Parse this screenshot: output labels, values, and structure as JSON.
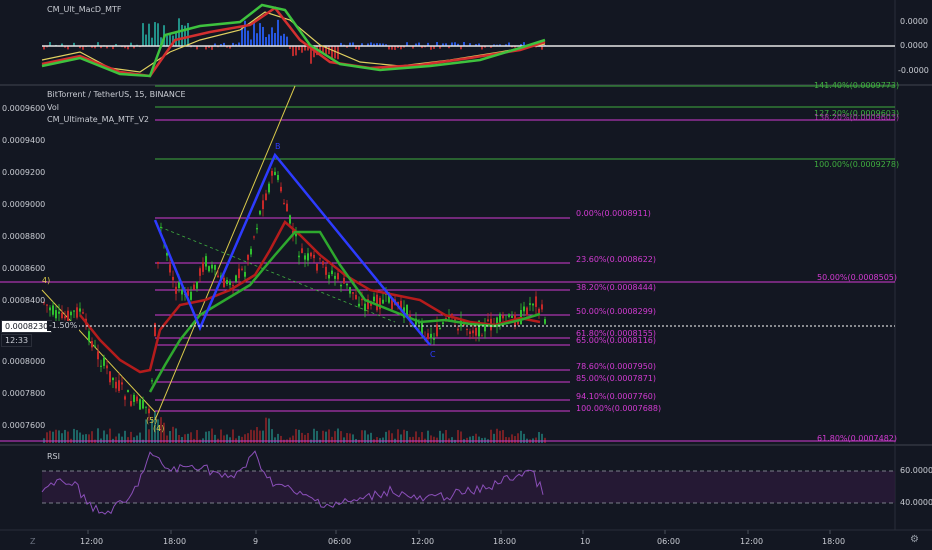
{
  "colors": {
    "background": "#131722",
    "axis_line": "#2a2e39",
    "text": "#c9ccd3",
    "fib_magenta": "#d23bd2",
    "fib_green": "#3fae3f",
    "pattern_blue": "#2d3bff",
    "yellow_line": "#d9c94a",
    "ma_red": "#b51c1c",
    "ma_green": "#2ea82e",
    "candle_up": "#2fbf2f",
    "candle_down": "#c62828",
    "rsi_line": "#8a4fb8",
    "rsi_band": "#2a1a3a",
    "macd_red": "#d32f2f",
    "macd_green": "#3ec23e",
    "macd_yellow": "#e0d060",
    "macd_hist_teal": "#26a69a",
    "macd_hist_blue": "#2962ff"
  },
  "macd_pane": {
    "title": "CM_Ult_MacD_MTF",
    "axis_labels": [
      "0.0000",
      "0.0000",
      "-0.0000"
    ]
  },
  "main_pane": {
    "symbol_title": "BitTorrent / TetherUS, 15, BINANCE",
    "study_vol": "Vol",
    "study_ma": "CM_Ultimate_MA_MTF_V2",
    "price_axis": [
      "0.0009600",
      "0.0009400",
      "0.0009200",
      "0.0009000",
      "0.0008800",
      "0.0008600",
      "0.0008400",
      "0.0008200",
      "0.0008000",
      "0.0007800",
      "0.0007600"
    ],
    "current_price": "0.0008230",
    "change_percent": "-1.50%",
    "countdown": "12:33",
    "left_edge_label": "4)",
    "pattern_labels": {
      "b": "B",
      "c": "C",
      "wave5": "(5)",
      "wave4": "(4)"
    },
    "fib_right": [
      {
        "text": "141.40%(0.0009773)",
        "color": "green"
      },
      {
        "text": "127.20%(0.0009603)",
        "color": "green"
      },
      {
        "text": "138.20%(0.0009603)",
        "color": "magenta"
      },
      {
        "text": "100.00%(0.0009278)",
        "color": "green"
      },
      {
        "text": "50.00%(0.0008505)",
        "color": "magenta"
      },
      {
        "text": "61.80%(0.0007482)",
        "color": "magenta"
      }
    ],
    "fib_mid": [
      {
        "text": "0.00%(0.0008911)"
      },
      {
        "text": "23.60%(0.0008622)"
      },
      {
        "text": "38.20%(0.0008444)"
      },
      {
        "text": "50.00%(0.0008299)"
      },
      {
        "text": "61.80%(0.0008155)"
      },
      {
        "text": "65.00%(0.0008116)"
      },
      {
        "text": "78.60%(0.0007950)"
      },
      {
        "text": "85.00%(0.0007871)"
      },
      {
        "text": "94.10%(0.0007760)"
      },
      {
        "text": "100.00%(0.0007688)"
      }
    ]
  },
  "rsi_pane": {
    "title": "RSI",
    "axis_labels": [
      "60.0000",
      "40.0000"
    ]
  },
  "time_axis": [
    "12:00",
    "18:00",
    "9",
    "06:00",
    "12:00",
    "18:00",
    "10",
    "06:00",
    "12:00",
    "18:00"
  ],
  "corner_left": "Z",
  "corner_right": "⚙"
}
